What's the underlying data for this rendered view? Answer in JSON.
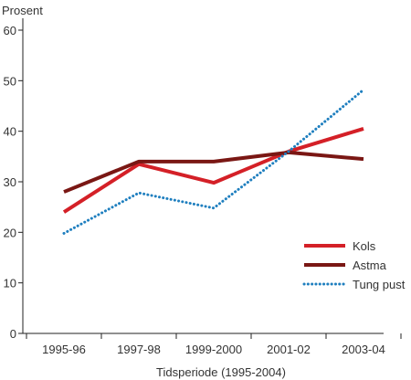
{
  "chart_data": {
    "type": "line",
    "ylabel": "Prosent",
    "xlabel": "Tidsperiode (1995-2004)",
    "categories": [
      "1995-96",
      "1997-98",
      "1999-2000",
      "2001-02",
      "2003-04"
    ],
    "ylim": [
      0,
      60
    ],
    "yticks": [
      0,
      10,
      20,
      30,
      40,
      50,
      60
    ],
    "grid": false,
    "legend_position": "bottom-right",
    "series": [
      {
        "name": "Kols",
        "values": [
          24,
          33.5,
          29.8,
          36,
          40.5
        ],
        "color": "#d42027",
        "style": "solid"
      },
      {
        "name": "Astma",
        "values": [
          28,
          34,
          34,
          35.8,
          34.5
        ],
        "color": "#7a1714",
        "style": "solid"
      },
      {
        "name": "Tung pust",
        "values": [
          19.8,
          27.8,
          24.8,
          36,
          48.2
        ],
        "color": "#1f7fbf",
        "style": "dotted"
      }
    ]
  }
}
